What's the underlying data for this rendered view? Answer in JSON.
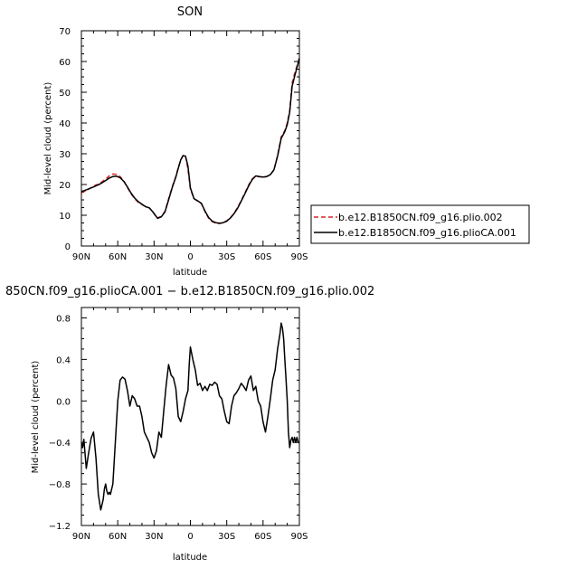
{
  "chart_data": [
    {
      "type": "line",
      "title": "SON",
      "xlabel": "latitude",
      "ylabel": "Mid-level cloud (percent)",
      "xlim": [
        -90,
        90
      ],
      "ylim": [
        0,
        70
      ],
      "xticks": [
        "90N",
        "60N",
        "30N",
        "0",
        "30S",
        "60S",
        "90S"
      ],
      "yticks": [
        "0",
        "10",
        "20",
        "30",
        "40",
        "50",
        "60",
        "70"
      ],
      "legend_position": "right",
      "series": [
        {
          "name": "b.e12.B1850CN.f09_g16.plio.002",
          "color": "#d62728",
          "dash": "dashed",
          "x": [
            -90,
            -85,
            -80,
            -75,
            -70,
            -67,
            -64,
            -61,
            -58,
            -55,
            -52,
            -49,
            -46,
            -43,
            -40,
            -37,
            -34,
            -31,
            -29,
            -27,
            -24,
            -21,
            -18,
            -15,
            -12,
            -10,
            -8,
            -6,
            -4,
            -2,
            0,
            3,
            6,
            9,
            12,
            15,
            18,
            21,
            24,
            27,
            30,
            33,
            36,
            39,
            42,
            45,
            48,
            51,
            54,
            57,
            60,
            63,
            66,
            69,
            72,
            75,
            78,
            80,
            82,
            84,
            86,
            88,
            90
          ],
          "y": [
            17.3,
            18.2,
            19.5,
            20.3,
            21.8,
            22.8,
            23.4,
            23.3,
            22.6,
            21.2,
            19,
            17,
            15.4,
            14.2,
            13.5,
            12.8,
            12.4,
            11.1,
            10,
            9.2,
            9.6,
            11.3,
            15.3,
            19.2,
            22.6,
            25.5,
            28,
            29.5,
            29.3,
            25,
            18.5,
            15.4,
            14.6,
            13.8,
            11.2,
            9.1,
            7.9,
            7.4,
            7.3,
            7.6,
            8.2,
            9.2,
            10.6,
            12.5,
            14.8,
            17.3,
            19.8,
            21.8,
            22.8,
            22.5,
            22.4,
            22.6,
            23.2,
            24.7,
            29.5,
            35.5,
            37.5,
            40,
            44,
            53,
            56,
            58.5,
            61.2
          ]
        },
        {
          "name": "b.e12.B1850CN.f09_g16.plioCA.001",
          "color": "#000000",
          "dash": "solid",
          "x": [
            -90,
            -85,
            -80,
            -75,
            -70,
            -67,
            -64,
            -61,
            -58,
            -55,
            -52,
            -49,
            -46,
            -43,
            -40,
            -37,
            -34,
            -31,
            -29,
            -27,
            -24,
            -21,
            -18,
            -15,
            -12,
            -10,
            -8,
            -6,
            -4,
            -2,
            0,
            3,
            6,
            9,
            12,
            15,
            18,
            21,
            24,
            27,
            30,
            33,
            36,
            39,
            42,
            45,
            48,
            51,
            54,
            57,
            60,
            63,
            66,
            69,
            72,
            75,
            78,
            80,
            82,
            84,
            86,
            88,
            90
          ],
          "y": [
            17.7,
            18.4,
            19.2,
            20.1,
            21.3,
            22.1,
            22.6,
            22.7,
            22.2,
            21,
            19.2,
            17.2,
            15.6,
            14.4,
            13.6,
            12.8,
            12.4,
            11.1,
            10,
            9,
            9.5,
            11.1,
            15,
            19,
            22.4,
            25.3,
            28,
            29.4,
            29.2,
            26,
            18.9,
            15.4,
            14.7,
            13.9,
            11.4,
            9.3,
            8.1,
            7.6,
            7.4,
            7.6,
            8.1,
            9.1,
            10.5,
            12.3,
            14.6,
            17,
            19.5,
            21.6,
            22.8,
            22.6,
            22.4,
            22.6,
            23.2,
            24.8,
            29.2,
            35,
            37.2,
            39.5,
            43.5,
            52,
            55,
            58,
            61
          ]
        }
      ]
    },
    {
      "type": "line",
      "title": "850CN.f09_g16.plioCA.001 − b.e12.B1850CN.f09_g16.plio.002",
      "xlabel": "latitude",
      "ylabel": "Mid-level cloud (percent)",
      "xlim": [
        -90,
        90
      ],
      "ylim": [
        -1.2,
        0.9
      ],
      "xticks": [
        "90N",
        "60N",
        "30N",
        "0",
        "30S",
        "60S",
        "90S"
      ],
      "yticks": [
        "−1.2",
        "−0.8",
        "−0.4",
        "0.0",
        "0.4",
        "0.8"
      ],
      "series": [
        {
          "color": "#000000",
          "x": [
            -90,
            -89,
            -88,
            -86,
            -84,
            -82,
            -80,
            -78,
            -76,
            -74,
            -72,
            -71,
            -70,
            -69,
            -68,
            -67,
            -66,
            -64,
            -62,
            -60,
            -58,
            -56,
            -54,
            -52,
            -50,
            -48,
            -46,
            -44,
            -42,
            -40,
            -38,
            -36,
            -34,
            -32,
            -30,
            -28,
            -26,
            -24,
            -22,
            -20,
            -18,
            -16,
            -14,
            -12,
            -10,
            -8,
            -6,
            -4,
            -2,
            -1,
            0,
            2,
            4,
            6,
            8,
            10,
            12,
            14,
            16,
            18,
            20,
            22,
            24,
            26,
            28,
            30,
            32,
            34,
            36,
            38,
            40,
            42,
            44,
            46,
            48,
            50,
            52,
            54,
            56,
            58,
            60,
            62,
            64,
            66,
            68,
            70,
            72,
            74,
            75,
            76,
            77,
            78,
            79,
            80,
            81,
            82,
            83,
            84,
            85,
            86,
            87,
            88,
            89,
            90
          ],
          "y": [
            -0.4,
            -0.45,
            -0.37,
            -0.65,
            -0.5,
            -0.36,
            -0.3,
            -0.55,
            -0.9,
            -1.05,
            -0.95,
            -0.85,
            -0.8,
            -0.87,
            -0.9,
            -0.88,
            -0.9,
            -0.8,
            -0.4,
            0,
            0.2,
            0.23,
            0.21,
            0.1,
            -0.05,
            0.05,
            0.02,
            -0.05,
            -0.05,
            -0.15,
            -0.3,
            -0.35,
            -0.4,
            -0.5,
            -0.55,
            -0.48,
            -0.3,
            -0.35,
            -0.1,
            0.15,
            0.35,
            0.25,
            0.22,
            0.12,
            -0.15,
            -0.2,
            -0.1,
            0.02,
            0.1,
            0.35,
            0.52,
            0.4,
            0.3,
            0.15,
            0.17,
            0.1,
            0.14,
            0.1,
            0.16,
            0.15,
            0.18,
            0.16,
            0.05,
            0.02,
            -0.1,
            -0.2,
            -0.22,
            -0.05,
            0.05,
            0.08,
            0.12,
            0.17,
            0.14,
            0.1,
            0.2,
            0.24,
            0.1,
            0.14,
            0,
            -0.05,
            -0.2,
            -0.3,
            -0.15,
            0.02,
            0.2,
            0.3,
            0.5,
            0.65,
            0.75,
            0.7,
            0.6,
            0.4,
            0.2,
            0,
            -0.3,
            -0.45,
            -0.38,
            -0.35,
            -0.4,
            -0.35,
            -0.4,
            -0.35,
            -0.4,
            -0.4
          ]
        }
      ]
    }
  ]
}
